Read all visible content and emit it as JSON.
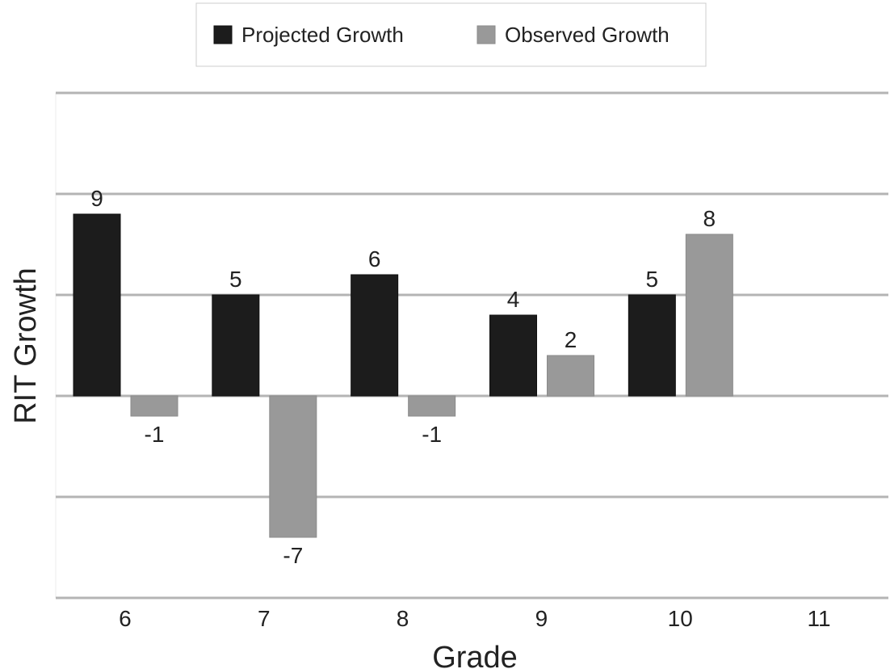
{
  "chart_data": {
    "type": "bar",
    "title": "",
    "xlabel": "Grade",
    "ylabel": "RIT Growth",
    "categories": [
      "6",
      "7",
      "8",
      "9",
      "10",
      "11"
    ],
    "series": [
      {
        "name": "Projected Growth",
        "color": "#1c1c1c",
        "values": [
          9,
          5,
          6,
          4,
          5,
          null
        ]
      },
      {
        "name": "Observed Growth",
        "color": "#999999",
        "values": [
          -1,
          -7,
          -1,
          2,
          8,
          null
        ]
      }
    ],
    "ylim": [
      -10,
      15
    ],
    "y_grid_step": 5,
    "show_y_tick_labels": false,
    "grid": true,
    "legend_position": "top-center",
    "data_labels": true
  }
}
